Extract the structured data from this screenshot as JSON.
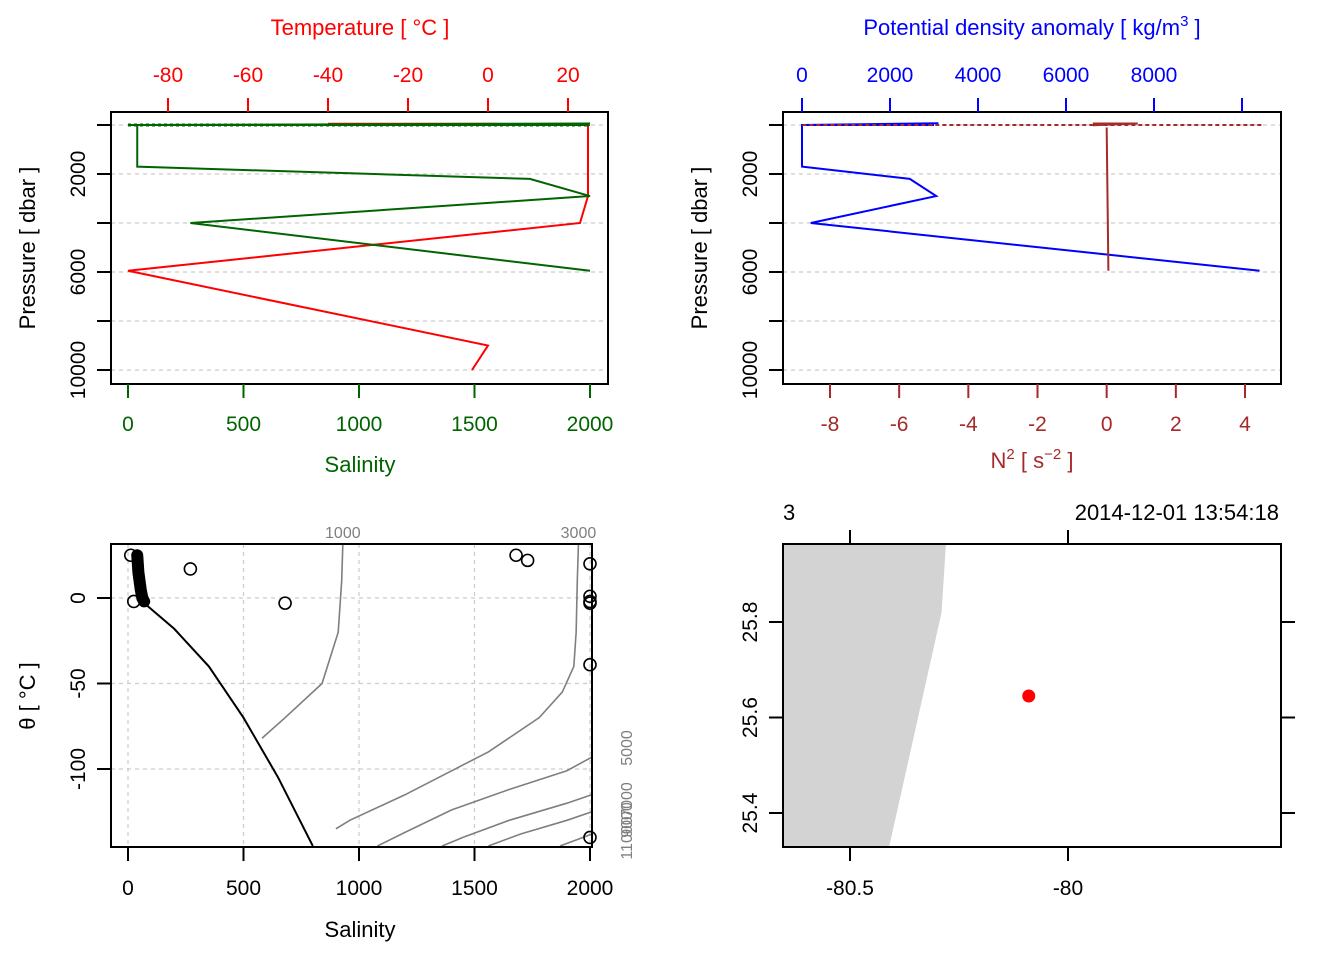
{
  "chart_data": [
    {
      "id": "profile-ts",
      "type": "line",
      "title": "",
      "top_axis": {
        "label": "Temperature [ °C ]",
        "color": "#ff0000",
        "ticks": [
          -80,
          -60,
          -40,
          -20,
          0,
          20
        ],
        "tick_labels": [
          "-80",
          "-60",
          "-40",
          "-20",
          "0",
          "20"
        ]
      },
      "bottom_axis": {
        "label": "Salinity",
        "color": "#006400",
        "ticks": [
          0,
          500,
          1000,
          1500,
          2000
        ],
        "tick_labels": [
          "0",
          "500",
          "1000",
          "1500",
          "2000"
        ]
      },
      "left_axis": {
        "label": "Pressure [ dbar ]",
        "ticks": [
          0,
          2000,
          4000,
          6000,
          8000,
          10000
        ],
        "tick_labels": [
          "",
          "2000",
          "",
          "6000",
          "",
          "10000"
        ],
        "reversed": true
      },
      "grid": true,
      "series": [
        {
          "name": "Temperature",
          "color": "#ff0000",
          "points": [
            [
              -40,
              -50
            ],
            [
              0,
              -50
            ],
            [
              25,
              0
            ],
            [
              25,
              -20
            ],
            [
              25,
              2000
            ],
            [
              25,
              2900
            ],
            [
              23,
              4000
            ],
            [
              -90,
              5950
            ],
            [
              0,
              9000
            ],
            [
              -4,
              10000
            ]
          ]
        },
        {
          "name": "Salinity",
          "color": "#006400",
          "points": [
            [
              2000,
              -60
            ],
            [
              0,
              0
            ],
            [
              2000,
              0
            ],
            [
              40,
              0
            ],
            [
              40,
              1700
            ],
            [
              1740,
              2200
            ],
            [
              2000,
              2900
            ],
            [
              270,
              4000
            ],
            [
              2000,
              5950
            ]
          ]
        }
      ]
    },
    {
      "id": "profile-density-n2",
      "type": "line",
      "top_axis": {
        "label": "Potential density anomaly [ kg/m³ ]",
        "color": "#0000ff",
        "ticks": [
          0,
          2000,
          4000,
          6000,
          8000,
          10000
        ],
        "tick_labels": [
          "0",
          "2000",
          "4000",
          "6000",
          "8000",
          ""
        ]
      },
      "bottom_axis": {
        "label": "N² [ s⁻² ]",
        "color": "#a52a2a",
        "ticks": [
          -8,
          -6,
          -4,
          -2,
          0,
          2,
          4
        ],
        "tick_labels": [
          "-8",
          "-6",
          "-4",
          "-2",
          "0",
          "2",
          "4"
        ]
      },
      "left_axis": {
        "label": "Pressure [ dbar ]",
        "ticks": [
          0,
          2000,
          4000,
          6000,
          8000,
          10000
        ],
        "tick_labels": [
          "",
          "2000",
          "",
          "6000",
          "",
          "10000"
        ],
        "reversed": true
      },
      "grid": true,
      "series": [
        {
          "name": "Potential density anomaly",
          "color": "#0000ff",
          "points": [
            [
              3100,
              -70
            ],
            [
              0,
              0
            ],
            [
              3000,
              0
            ],
            [
              0,
              0
            ],
            [
              0,
              1700
            ],
            [
              2450,
              2200
            ],
            [
              3050,
              2900
            ],
            [
              200,
              4000
            ],
            [
              10400,
              5950
            ]
          ]
        },
        {
          "name": "N2",
          "color": "#a52a2a",
          "points": [
            [
              -8.8,
              0
            ],
            [
              4.5,
              0
            ],
            [
              -0.4,
              -60
            ],
            [
              0.9,
              -60
            ],
            [
              0,
              100
            ],
            [
              0.05,
              5950
            ]
          ]
        }
      ]
    },
    {
      "id": "ts-diagram",
      "type": "scatter",
      "xlabel": "Salinity",
      "ylabel": "θ [ °C ]",
      "x_ticks": [
        0,
        500,
        1000,
        1500,
        2000
      ],
      "y_ticks": [
        0,
        -50,
        -100
      ],
      "xlim": [
        -75,
        2080
      ],
      "ylim": [
        -145,
        32
      ],
      "grid": true,
      "points": [
        [
          12,
          25
        ],
        [
          25,
          -2
        ],
        [
          270,
          17
        ],
        [
          680,
          -3
        ],
        [
          1680,
          25
        ],
        [
          1730,
          22
        ],
        [
          2000,
          20
        ],
        [
          2000,
          1
        ],
        [
          2000,
          -2
        ],
        [
          2000,
          -3
        ],
        [
          2000,
          -39
        ],
        [
          2000,
          -140
        ]
      ],
      "cluster": [
        [
          40,
          25
        ],
        [
          45,
          15
        ],
        [
          55,
          5
        ],
        [
          62,
          0
        ],
        [
          70,
          -2
        ]
      ],
      "freezing_line": [
        [
          70,
          -3
        ],
        [
          200,
          -18
        ],
        [
          350,
          -40
        ],
        [
          500,
          -70
        ],
        [
          650,
          -105
        ],
        [
          800,
          -145
        ]
      ],
      "density_contours": [
        {
          "label": "1000",
          "points": [
            [
              930,
              32
            ],
            [
              925,
              10
            ],
            [
              910,
              -20
            ],
            [
              840,
              -50
            ],
            [
              680,
              -70
            ],
            [
              580,
              -82
            ]
          ]
        },
        {
          "label": "3000",
          "points": [
            [
              1950,
              32
            ],
            [
              1945,
              10
            ],
            [
              1940,
              -20
            ],
            [
              1930,
              -40
            ],
            [
              1880,
              -55
            ],
            [
              1780,
              -70
            ],
            [
              1560,
              -90
            ],
            [
              1200,
              -115
            ],
            [
              960,
              -130
            ],
            [
              900,
              -135
            ]
          ]
        },
        {
          "label": "5000",
          "points": [
            [
              2080,
              -93
            ],
            [
              1900,
              -101
            ],
            [
              1650,
              -112
            ],
            [
              1400,
              -124
            ],
            [
              1200,
              -137
            ],
            [
              1080,
              -145
            ]
          ]
        },
        {
          "label": "7000",
          "points": [
            [
              2080,
              -115
            ],
            [
              1900,
              -120
            ],
            [
              1650,
              -130
            ],
            [
              1450,
              -140
            ],
            [
              1360,
              -145
            ]
          ]
        },
        {
          "label": "9000",
          "points": [
            [
              2080,
              -125
            ],
            [
              1900,
              -130
            ],
            [
              1700,
              -138
            ],
            [
              1560,
              -145
            ]
          ]
        },
        {
          "label": "11000",
          "points": [
            [
              2080,
              -138
            ],
            [
              1950,
              -141
            ],
            [
              1870,
              -145
            ]
          ]
        }
      ]
    },
    {
      "id": "station-map",
      "type": "scatter",
      "header_left": "3",
      "header_right": "2014-12-01 13:54:18",
      "x_ticks": [
        -80.5,
        -80
      ],
      "x_tick_labels": [
        "-80.5",
        "-80"
      ],
      "y_ticks": [
        25.4,
        25.6,
        25.8
      ],
      "y_tick_labels": [
        "25.4",
        "25.6",
        "25.8"
      ],
      "xlim": [
        -80.655,
        -79.51
      ],
      "ylim": [
        25.33,
        25.965
      ],
      "land": [
        [
          -80.655,
          25.965
        ],
        [
          -80.28,
          25.965
        ],
        [
          -80.29,
          25.82
        ],
        [
          -80.41,
          25.33
        ],
        [
          -80.655,
          25.33
        ]
      ],
      "station": {
        "lon": -80.09,
        "lat": 25.645,
        "color": "#ff0000"
      }
    }
  ]
}
